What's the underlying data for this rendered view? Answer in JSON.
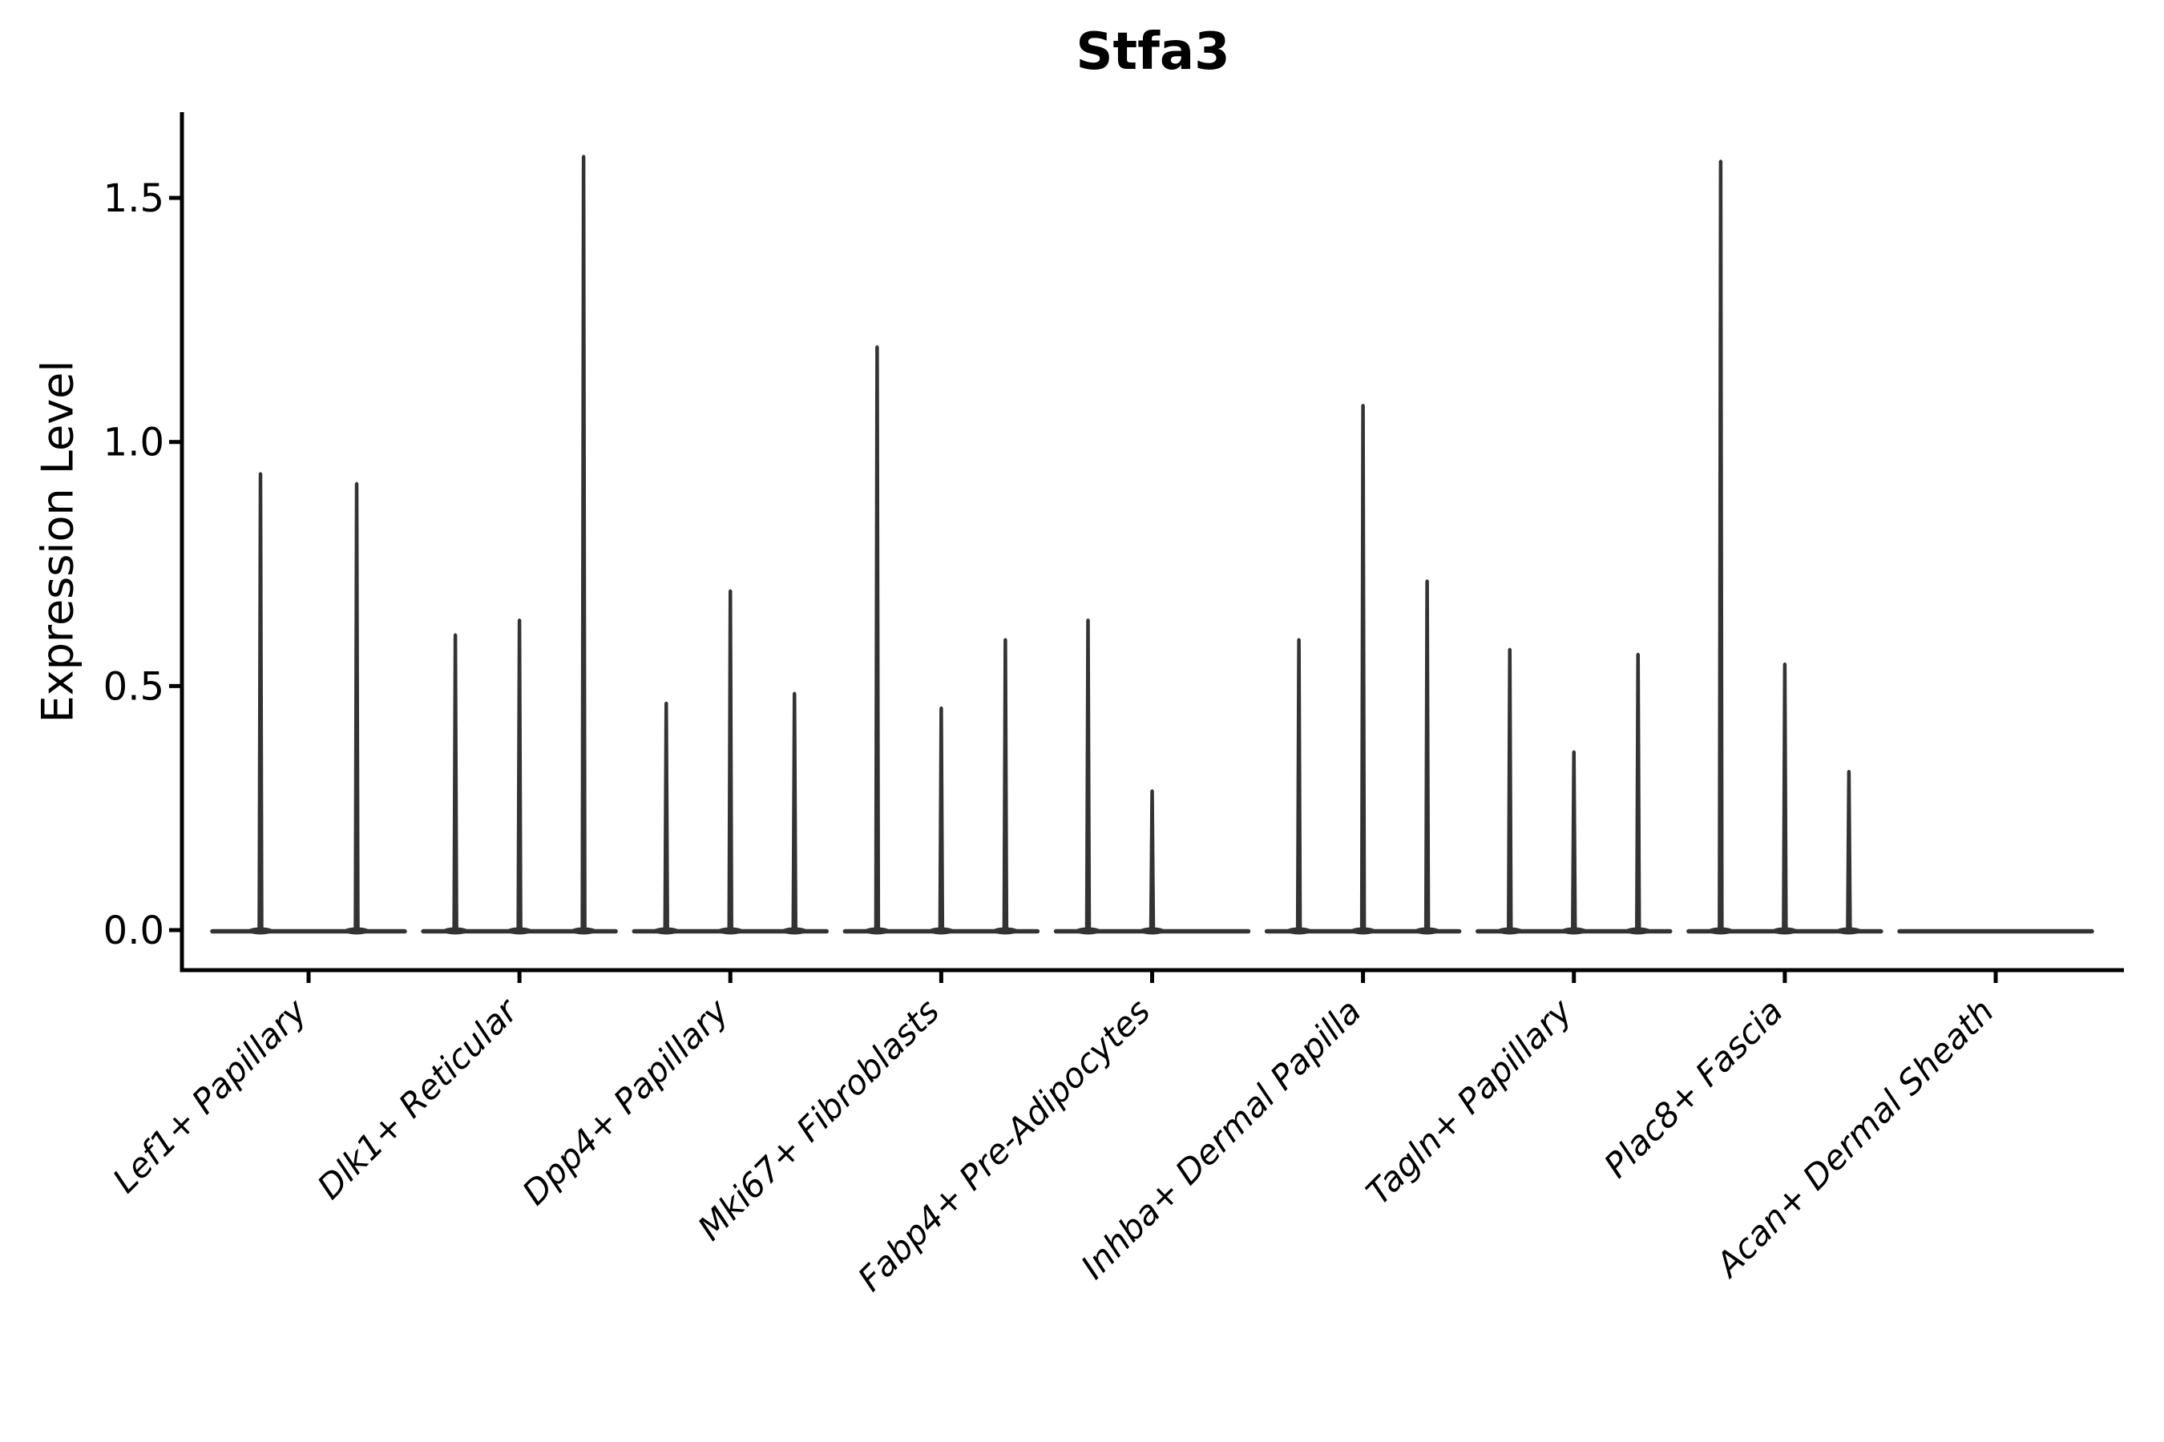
{
  "chart_data": {
    "type": "violin",
    "title": "Stfa3",
    "ylabel": "Expression Level",
    "xlabel": "",
    "ylim": [
      0,
      1.68
    ],
    "grid": false,
    "legend": "none",
    "violin_color": "#333333",
    "axis_color": "#000000",
    "yticks": [
      {
        "label": "0.0",
        "value": 0.0
      },
      {
        "label": "0.5",
        "value": 0.5
      },
      {
        "label": "1.0",
        "value": 1.0
      },
      {
        "label": "1.5",
        "value": 1.5
      }
    ],
    "categories": [
      "Lef1+ Papillary",
      "Dlk1+ Reticular",
      "Dpp4+ Papillary",
      "Mki67+ Fibroblasts",
      "Fabp4+ Pre-Adipocytes",
      "Inhba+ Dermal Papilla",
      "Tagln+ Papillary",
      "Plac8+ Fascia",
      "Acan+ Dermal Sheath"
    ],
    "groups": [
      {
        "label": "Lef1+ Papillary",
        "violin_max_values": [
          0.94,
          0.92
        ]
      },
      {
        "label": "Dlk1+ Reticular",
        "violin_max_values": [
          0.61,
          0.64,
          1.59
        ]
      },
      {
        "label": "Dpp4+ Papillary",
        "violin_max_values": [
          0.47,
          0.7,
          0.49
        ]
      },
      {
        "label": "Mki67+ Fibroblasts",
        "violin_max_values": [
          1.2,
          0.46,
          0.6
        ]
      },
      {
        "label": "Fabp4+ Pre-Adipocytes",
        "violin_max_values": [
          0.64,
          0.29,
          0
        ]
      },
      {
        "label": "Inhba+ Dermal Papilla",
        "violin_max_values": [
          0.6,
          1.08,
          0.72
        ]
      },
      {
        "label": "Tagln+ Papillary",
        "violin_max_values": [
          0.58,
          0.37,
          0.57
        ]
      },
      {
        "label": "Plac8+ Fascia",
        "violin_max_values": [
          1.58,
          0.55,
          0.33
        ]
      },
      {
        "label": "Acan+ Dermal Sheath",
        "violin_max_values": [
          0,
          0,
          0
        ]
      }
    ],
    "note_zero_means_flat_violin_no_spike": true
  }
}
